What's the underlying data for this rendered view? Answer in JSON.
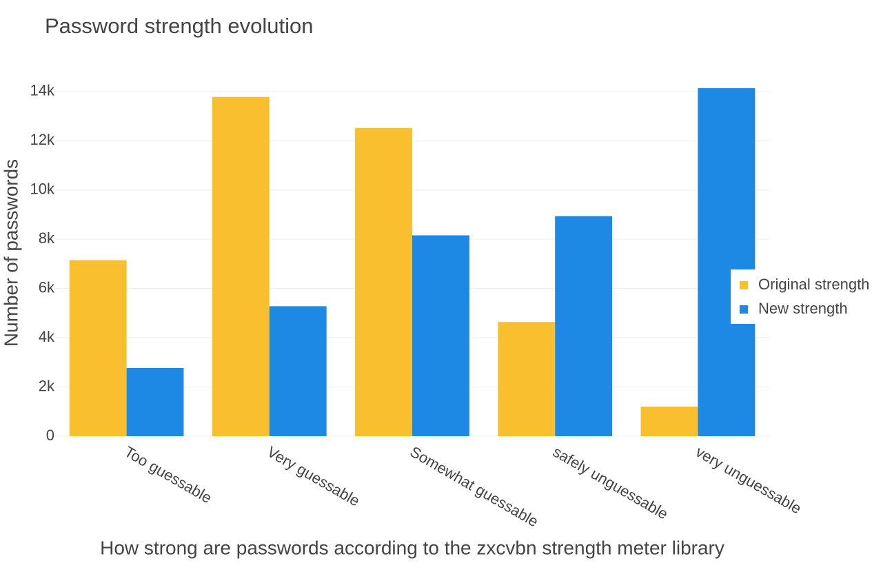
{
  "chart_data": {
    "type": "bar",
    "title": "Password strength evolution",
    "x_label": "How strong are passwords according to the zxcvbn strength meter library",
    "y_label": "Number of passwords",
    "categories": [
      "Too guessable",
      "Very guessable",
      "Somewhat guessable",
      "safely unguessable",
      "very unguessable"
    ],
    "series": [
      {
        "name": "Original strength",
        "color": "#f8bf2e",
        "values": [
          7150,
          13780,
          12520,
          4640,
          1200
        ]
      },
      {
        "name": "New strength",
        "color": "#1e88e5",
        "values": [
          2770,
          5280,
          8160,
          8940,
          14140
        ]
      }
    ],
    "ylim": [
      0,
      14500
    ],
    "yticks": [
      0,
      {
        "value": 2000,
        "label": "2k"
      },
      {
        "value": 4000,
        "label": "4k"
      },
      {
        "value": 6000,
        "label": "6k"
      },
      {
        "value": 8000,
        "label": "8k"
      },
      {
        "value": 10000,
        "label": "10k"
      },
      {
        "value": 12000,
        "label": "12k"
      },
      {
        "value": 14000,
        "label": "14k"
      }
    ],
    "grid": true,
    "legend": "right"
  }
}
